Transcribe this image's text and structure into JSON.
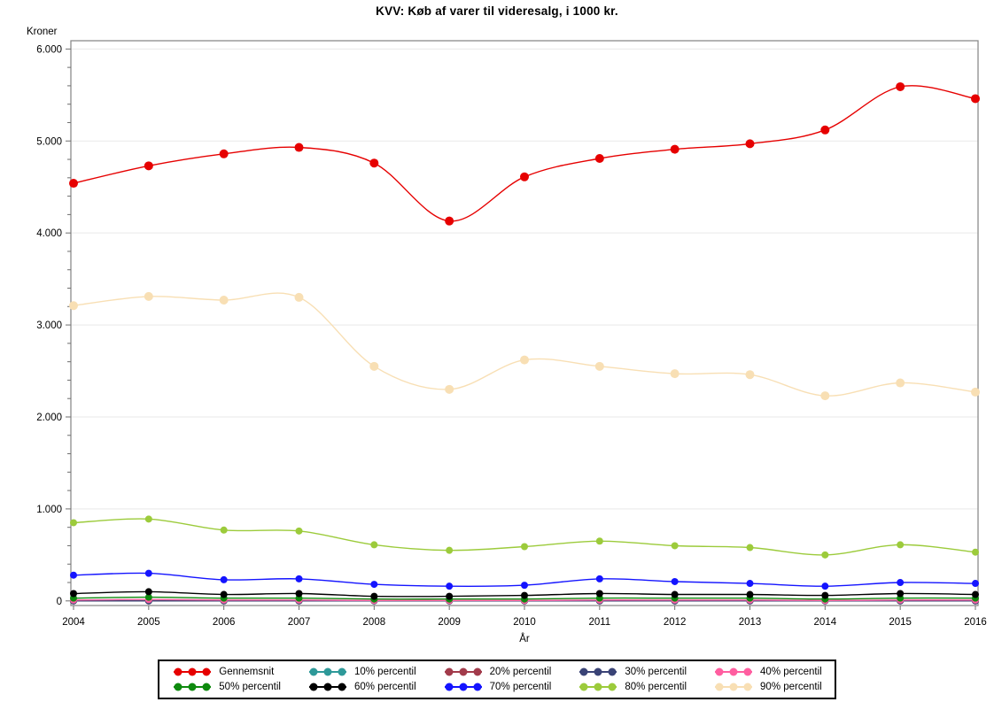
{
  "title": "KVV: Køb af varer til videresalg, i 1000 kr.",
  "chart_data": {
    "type": "line",
    "title": "KVV: Køb af varer til videresalg, i 1000 kr.",
    "xlabel": "År",
    "ylabel": "Kroner",
    "x": [
      2004,
      2005,
      2006,
      2007,
      2008,
      2009,
      2010,
      2011,
      2012,
      2013,
      2014,
      2015,
      2016
    ],
    "ylim": [
      0,
      6000
    ],
    "ytick_step": 1000,
    "ytick_minor_step": 200,
    "ytick_labels": [
      "0",
      "1.000",
      "2.000",
      "3.000",
      "4.000",
      "5.000",
      "6.000"
    ],
    "grid": true,
    "legend_position": "bottom",
    "series": [
      {
        "name": "Gennemsnit",
        "color": "#E60000",
        "values": [
          4540,
          4730,
          4860,
          4930,
          4760,
          4130,
          4610,
          4810,
          4910,
          4970,
          5120,
          5590,
          5460
        ]
      },
      {
        "name": "10% percentil",
        "color": "#2E9999",
        "values": [
          0,
          0,
          0,
          0,
          0,
          0,
          0,
          0,
          0,
          0,
          0,
          0,
          0
        ]
      },
      {
        "name": "20% percentil",
        "color": "#A23B4B",
        "values": [
          0,
          0,
          0,
          0,
          0,
          0,
          0,
          0,
          0,
          0,
          0,
          0,
          0
        ]
      },
      {
        "name": "30% percentil",
        "color": "#3A4376",
        "values": [
          0,
          0,
          0,
          0,
          0,
          0,
          0,
          0,
          0,
          0,
          0,
          0,
          0
        ]
      },
      {
        "name": "40% percentil",
        "color": "#FF5EA0",
        "values": [
          10,
          15,
          10,
          10,
          5,
          5,
          5,
          10,
          10,
          10,
          5,
          10,
          10
        ]
      },
      {
        "name": "50% percentil",
        "color": "#0E8A0E",
        "values": [
          30,
          40,
          30,
          30,
          20,
          20,
          20,
          30,
          30,
          30,
          20,
          30,
          30
        ]
      },
      {
        "name": "60% percentil",
        "color": "#000000",
        "values": [
          80,
          100,
          70,
          80,
          50,
          50,
          60,
          80,
          70,
          70,
          60,
          80,
          70
        ]
      },
      {
        "name": "70% percentil",
        "color": "#1414FF",
        "values": [
          280,
          300,
          230,
          240,
          180,
          160,
          170,
          240,
          210,
          190,
          160,
          200,
          190
        ]
      },
      {
        "name": "80% percentil",
        "color": "#9CCB3B",
        "values": [
          850,
          890,
          770,
          760,
          610,
          550,
          590,
          650,
          600,
          580,
          500,
          610,
          530
        ]
      },
      {
        "name": "90% percentil",
        "color": "#F8DFB4",
        "values": [
          3210,
          3310,
          3270,
          3300,
          2550,
          2300,
          2620,
          2550,
          2470,
          2460,
          2230,
          2370,
          2270
        ]
      }
    ]
  },
  "colors": {
    "background": "#FFFFFF",
    "plot_border": "#8C8C8C",
    "gridline": "#E9E9E9",
    "tick": "#6E6E6E",
    "text": "#000000"
  }
}
